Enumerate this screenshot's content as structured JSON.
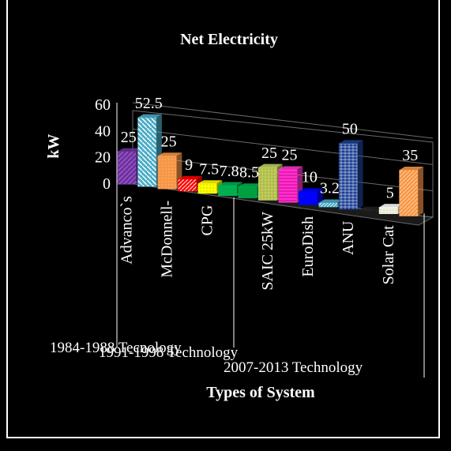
{
  "chart_data": {
    "type": "bar",
    "title": "Net Electricity",
    "xlabel": "Types of System",
    "ylabel": "kW",
    "ylim": [
      0,
      60
    ],
    "yticks": [
      "0",
      "20",
      "40",
      "60"
    ],
    "grid": true,
    "categories": [
      "Advanco`s",
      "",
      "McDonnell-",
      "",
      "CPG",
      "",
      "",
      "SAIC 25kW",
      "",
      "EuroDish",
      "",
      "ANU",
      "",
      "Solar Cat",
      ""
    ],
    "values": [
      25,
      52.5,
      25,
      9,
      7.5,
      7.8,
      8.5,
      25,
      25,
      10,
      3.2,
      50,
      0,
      5,
      35
    ],
    "value_labels": [
      "25",
      "52.5",
      "25",
      "9",
      "7.5",
      "7.8",
      "8.5",
      "25",
      "25",
      "10",
      "3.2",
      "50",
      "",
      "5",
      "35"
    ],
    "bar_colors": [
      "#7030a0",
      "#4bacc6",
      "#f79646",
      "#ff0000",
      "#ffff00",
      "#00b050",
      "#00b050",
      "#c0d060",
      "#ff33cc",
      "#0000ff",
      "#4bacc6",
      "#1f3f8f",
      "#1f1f1f",
      "#ffffff",
      "#f79646"
    ],
    "groups": [
      "1984-1988 Tecnology",
      "1991-1998 Technology",
      "2007-2013 Technology"
    ]
  }
}
